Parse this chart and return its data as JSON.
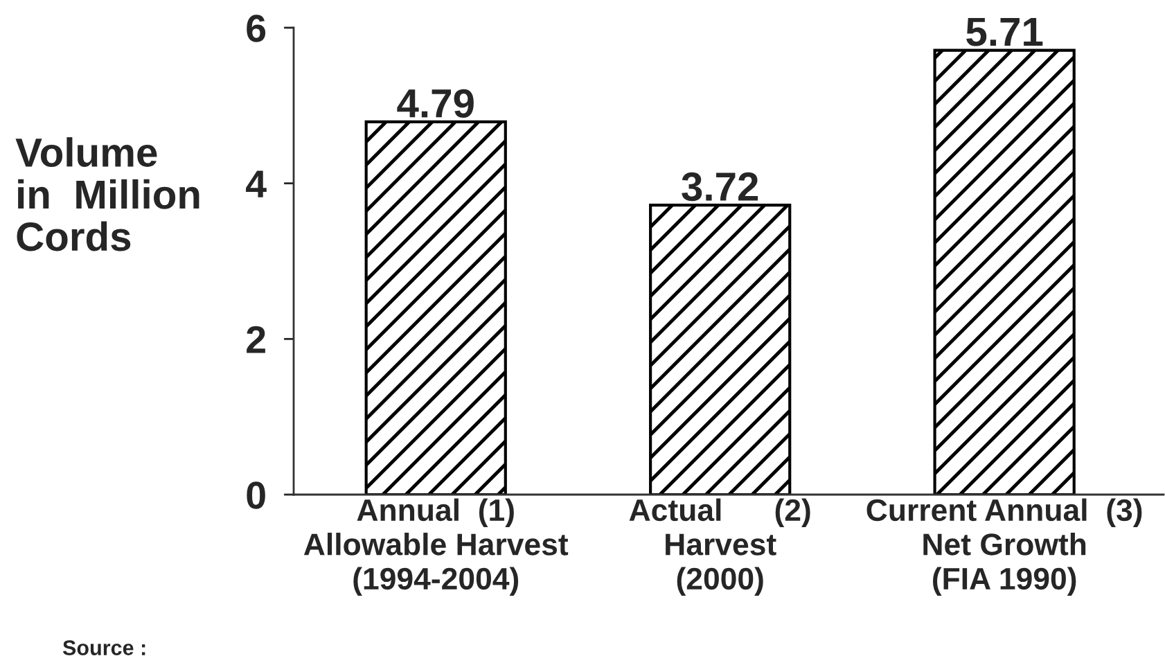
{
  "chart_data": {
    "type": "bar",
    "categories": [
      "Annual  (1)\nAllowable Harvest\n(1994-2004)",
      "Actual      (2)\nHarvest\n(2000)",
      "Current Annual  (3)\nNet Growth\n(FIA 1990)"
    ],
    "values": [
      4.79,
      3.72,
      5.71
    ],
    "color": "#000000",
    "ylabel": "Volume\nin  Million\nCords",
    "ylim": [
      0,
      6
    ],
    "yticks": [
      0,
      2,
      4,
      6
    ],
    "data_labels": true,
    "annotations": [
      "Source :"
    ]
  }
}
